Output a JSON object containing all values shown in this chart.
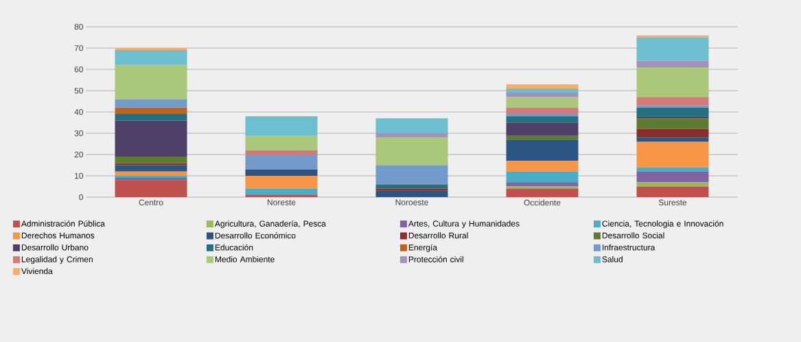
{
  "chart_data": {
    "type": "bar",
    "stacked": true,
    "categories": [
      "Centro",
      "Noreste",
      "Noroeste",
      "Occidente",
      "Sureste"
    ],
    "ylim": [
      0,
      80
    ],
    "yticks": [
      0,
      10,
      20,
      30,
      40,
      50,
      60,
      70,
      80
    ],
    "grid": "y",
    "legend": "bottom",
    "series": [
      {
        "name": "Administración Pública",
        "color": "#c0504d",
        "values": [
          8,
          1,
          null,
          4,
          5
        ]
      },
      {
        "name": "Agricultura, Ganadería, Pesca",
        "color": "#9bbb59",
        "values": [
          null,
          null,
          null,
          1,
          2
        ]
      },
      {
        "name": "Artes, Cultura y Humanidades",
        "color": "#8064a2",
        "values": [
          1,
          null,
          null,
          2,
          5
        ]
      },
      {
        "name": "Ciencia, Tecnologia e Innovación",
        "color": "#4bacc6",
        "values": [
          1,
          3,
          null,
          5,
          2
        ]
      },
      {
        "name": "Derechos Humanos",
        "color": "#f79646",
        "values": [
          2,
          6,
          null,
          5,
          12
        ]
      },
      {
        "name": "Desarrollo Económico",
        "color": "#2c5482",
        "values": [
          3,
          3,
          3,
          10,
          2
        ]
      },
      {
        "name": "Desarrollo Rural",
        "color": "#8b2d2b",
        "values": [
          1,
          null,
          1,
          null,
          4
        ]
      },
      {
        "name": "Desarrollo Social",
        "color": "#5f7a31",
        "values": [
          3,
          null,
          null,
          2,
          5
        ]
      },
      {
        "name": "Desarrollo Urbano",
        "color": "#4d3f68",
        "values": [
          17,
          null,
          null,
          6,
          1
        ]
      },
      {
        "name": "Educación",
        "color": "#23707f",
        "values": [
          3,
          null,
          2,
          3,
          4
        ]
      },
      {
        "name": "Energía",
        "color": "#c0621a",
        "values": [
          3,
          null,
          null,
          null,
          null
        ]
      },
      {
        "name": "Infraestructura",
        "color": "#729aca",
        "values": [
          4,
          7,
          9,
          1,
          1
        ]
      },
      {
        "name": "Legalidad y Crimen",
        "color": "#d47a7a",
        "values": [
          null,
          2,
          null,
          3,
          4
        ]
      },
      {
        "name": "Medio Ambiente",
        "color": "#aac77a",
        "values": [
          16,
          7,
          13,
          5,
          14
        ]
      },
      {
        "name": "Protección civil",
        "color": "#a491bd",
        "values": [
          null,
          null,
          2,
          2,
          3
        ]
      },
      {
        "name": "Salud",
        "color": "#6dbfd0",
        "values": [
          7,
          9,
          7,
          2,
          11
        ]
      },
      {
        "name": "Vivienda",
        "color": "#f5ad6b",
        "values": [
          1,
          null,
          null,
          2,
          1
        ]
      }
    ]
  }
}
